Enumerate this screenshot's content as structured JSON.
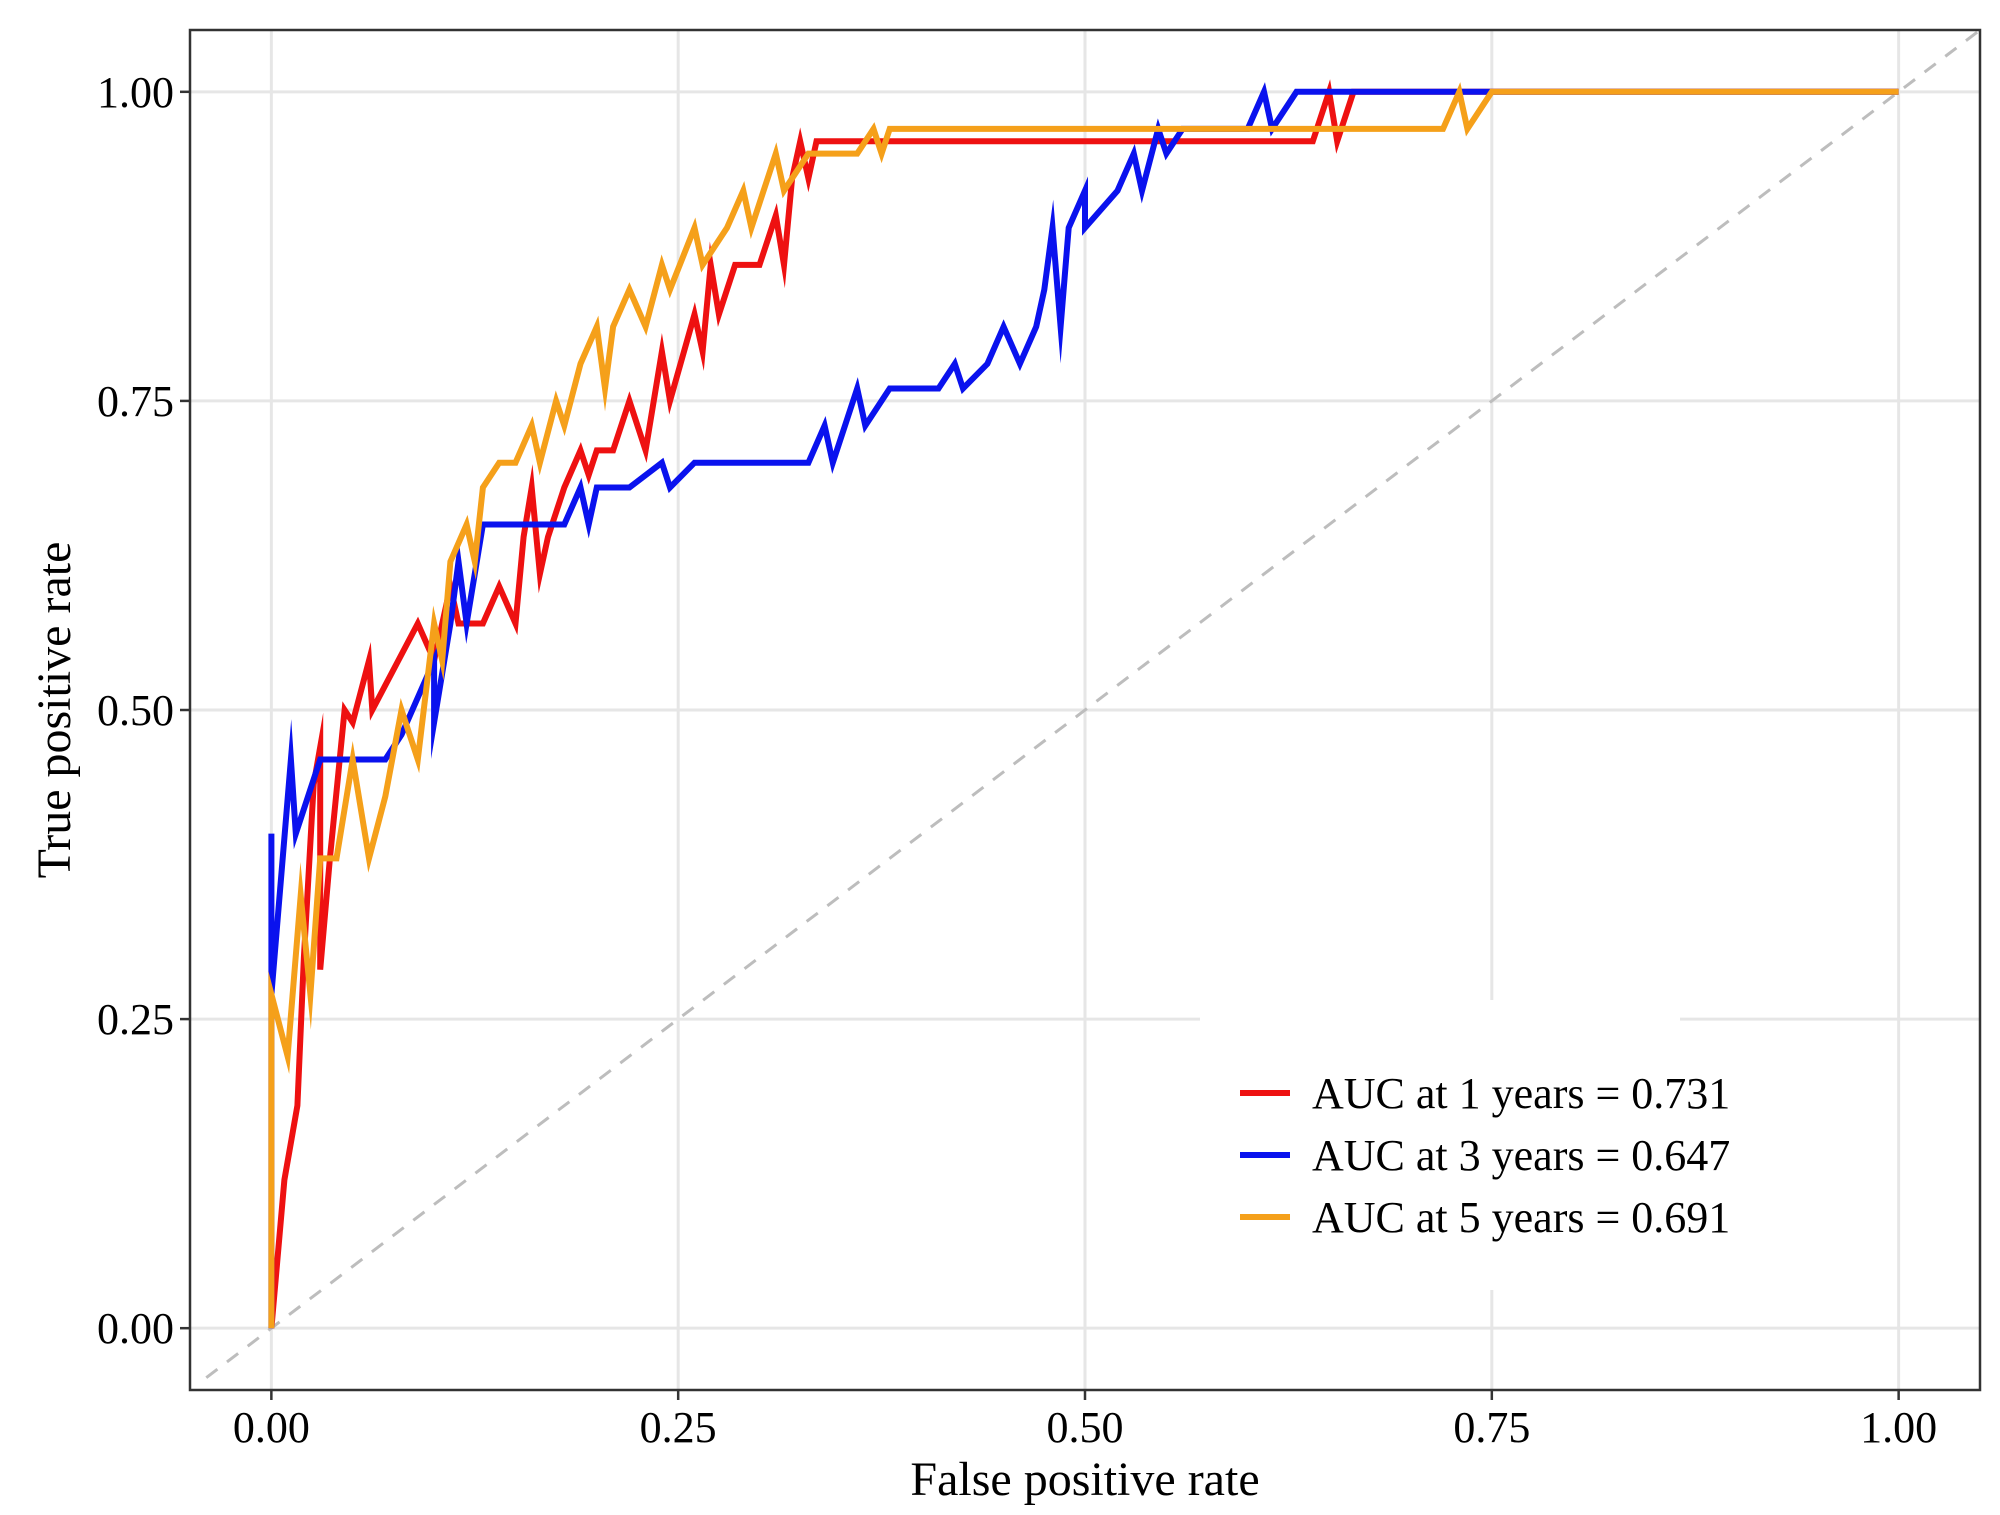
{
  "chart_data": {
    "type": "line",
    "xlabel": "False positive rate",
    "ylabel": "True positive rate",
    "xlim": [
      -0.05,
      1.05
    ],
    "ylim": [
      -0.05,
      1.05
    ],
    "x_ticks": [
      0,
      0.25,
      0.5,
      0.75,
      1
    ],
    "y_ticks": [
      0,
      0.25,
      0.5,
      0.75,
      1
    ],
    "x_tick_labels": [
      "0.00",
      "0.25",
      "0.50",
      "0.75",
      "1.00"
    ],
    "y_tick_labels": [
      "0.00",
      "0.25",
      "0.50",
      "0.75",
      "1.00"
    ],
    "grid": true,
    "legend_position": "bottom-right",
    "reference_line": {
      "style": "dashed",
      "color": "#bdbdbd",
      "points": [
        [
          -0.04,
          -0.04
        ],
        [
          1.05,
          1.05
        ]
      ]
    },
    "series": [
      {
        "name": "AUC at 1 years = 0.731",
        "color": "#ee1111",
        "points": [
          [
            0,
            0
          ],
          [
            0.008,
            0.12
          ],
          [
            0.016,
            0.18
          ],
          [
            0.02,
            0.3
          ],
          [
            0.026,
            0.44
          ],
          [
            0.03,
            0.47
          ],
          [
            0.03,
            0.29
          ],
          [
            0.036,
            0.38
          ],
          [
            0.045,
            0.5
          ],
          [
            0.05,
            0.49
          ],
          [
            0.06,
            0.54
          ],
          [
            0.062,
            0.5
          ],
          [
            0.09,
            0.57
          ],
          [
            0.1,
            0.54
          ],
          [
            0.11,
            0.6
          ],
          [
            0.115,
            0.57
          ],
          [
            0.13,
            0.57
          ],
          [
            0.14,
            0.6
          ],
          [
            0.15,
            0.57
          ],
          [
            0.155,
            0.64
          ],
          [
            0.16,
            0.68
          ],
          [
            0.165,
            0.61
          ],
          [
            0.17,
            0.64
          ],
          [
            0.18,
            0.68
          ],
          [
            0.19,
            0.71
          ],
          [
            0.195,
            0.69
          ],
          [
            0.2,
            0.71
          ],
          [
            0.21,
            0.71
          ],
          [
            0.22,
            0.75
          ],
          [
            0.23,
            0.71
          ],
          [
            0.24,
            0.79
          ],
          [
            0.245,
            0.75
          ],
          [
            0.26,
            0.82
          ],
          [
            0.265,
            0.79
          ],
          [
            0.27,
            0.86
          ],
          [
            0.275,
            0.82
          ],
          [
            0.285,
            0.86
          ],
          [
            0.3,
            0.86
          ],
          [
            0.31,
            0.9
          ],
          [
            0.315,
            0.86
          ],
          [
            0.32,
            0.93
          ],
          [
            0.325,
            0.96
          ],
          [
            0.33,
            0.93
          ],
          [
            0.335,
            0.96
          ],
          [
            0.64,
            0.96
          ],
          [
            0.65,
            1.0
          ],
          [
            0.655,
            0.96
          ],
          [
            0.665,
            1.0
          ],
          [
            1.0,
            1.0
          ]
        ]
      },
      {
        "name": "AUC at 3 years = 0.647",
        "color": "#0a12ee",
        "points": [
          [
            0,
            0
          ],
          [
            0,
            0.4
          ],
          [
            0,
            0.27
          ],
          [
            0.012,
            0.46
          ],
          [
            0.015,
            0.4
          ],
          [
            0.03,
            0.46
          ],
          [
            0.07,
            0.46
          ],
          [
            0.08,
            0.48
          ],
          [
            0.09,
            0.51
          ],
          [
            0.1,
            0.54
          ],
          [
            0.1,
            0.49
          ],
          [
            0.11,
            0.57
          ],
          [
            0.115,
            0.62
          ],
          [
            0.12,
            0.57
          ],
          [
            0.13,
            0.65
          ],
          [
            0.18,
            0.65
          ],
          [
            0.19,
            0.68
          ],
          [
            0.195,
            0.65
          ],
          [
            0.2,
            0.68
          ],
          [
            0.22,
            0.68
          ],
          [
            0.24,
            0.7
          ],
          [
            0.245,
            0.68
          ],
          [
            0.26,
            0.7
          ],
          [
            0.33,
            0.7
          ],
          [
            0.34,
            0.73
          ],
          [
            0.345,
            0.7
          ],
          [
            0.36,
            0.76
          ],
          [
            0.365,
            0.73
          ],
          [
            0.38,
            0.76
          ],
          [
            0.41,
            0.76
          ],
          [
            0.42,
            0.78
          ],
          [
            0.425,
            0.76
          ],
          [
            0.44,
            0.78
          ],
          [
            0.45,
            0.81
          ],
          [
            0.46,
            0.78
          ],
          [
            0.47,
            0.81
          ],
          [
            0.475,
            0.84
          ],
          [
            0.48,
            0.89
          ],
          [
            0.485,
            0.81
          ],
          [
            0.49,
            0.89
          ],
          [
            0.5,
            0.92
          ],
          [
            0.5,
            0.89
          ],
          [
            0.52,
            0.92
          ],
          [
            0.53,
            0.95
          ],
          [
            0.535,
            0.92
          ],
          [
            0.545,
            0.97
          ],
          [
            0.55,
            0.95
          ],
          [
            0.56,
            0.97
          ],
          [
            0.6,
            0.97
          ],
          [
            0.61,
            1.0
          ],
          [
            0.615,
            0.97
          ],
          [
            0.63,
            1.0
          ],
          [
            1.0,
            1.0
          ]
        ]
      },
      {
        "name": "AUC at 5 years = 0.691",
        "color": "#f5a01a",
        "points": [
          [
            0,
            0
          ],
          [
            0,
            0.27
          ],
          [
            0.01,
            0.22
          ],
          [
            0.018,
            0.35
          ],
          [
            0.024,
            0.27
          ],
          [
            0.03,
            0.38
          ],
          [
            0.04,
            0.38
          ],
          [
            0.05,
            0.46
          ],
          [
            0.06,
            0.38
          ],
          [
            0.07,
            0.43
          ],
          [
            0.08,
            0.5
          ],
          [
            0.09,
            0.46
          ],
          [
            0.1,
            0.57
          ],
          [
            0.105,
            0.54
          ],
          [
            0.11,
            0.62
          ],
          [
            0.12,
            0.65
          ],
          [
            0.125,
            0.62
          ],
          [
            0.13,
            0.68
          ],
          [
            0.14,
            0.7
          ],
          [
            0.15,
            0.7
          ],
          [
            0.16,
            0.73
          ],
          [
            0.165,
            0.7
          ],
          [
            0.175,
            0.75
          ],
          [
            0.18,
            0.73
          ],
          [
            0.19,
            0.78
          ],
          [
            0.2,
            0.81
          ],
          [
            0.205,
            0.76
          ],
          [
            0.21,
            0.81
          ],
          [
            0.22,
            0.84
          ],
          [
            0.23,
            0.81
          ],
          [
            0.24,
            0.86
          ],
          [
            0.245,
            0.84
          ],
          [
            0.26,
            0.89
          ],
          [
            0.265,
            0.86
          ],
          [
            0.28,
            0.89
          ],
          [
            0.29,
            0.92
          ],
          [
            0.295,
            0.89
          ],
          [
            0.31,
            0.95
          ],
          [
            0.315,
            0.92
          ],
          [
            0.33,
            0.95
          ],
          [
            0.36,
            0.95
          ],
          [
            0.37,
            0.97
          ],
          [
            0.375,
            0.95
          ],
          [
            0.38,
            0.97
          ],
          [
            0.72,
            0.97
          ],
          [
            0.73,
            1.0
          ],
          [
            0.735,
            0.97
          ],
          [
            0.75,
            1.0
          ],
          [
            1.0,
            1.0
          ]
        ]
      }
    ]
  }
}
